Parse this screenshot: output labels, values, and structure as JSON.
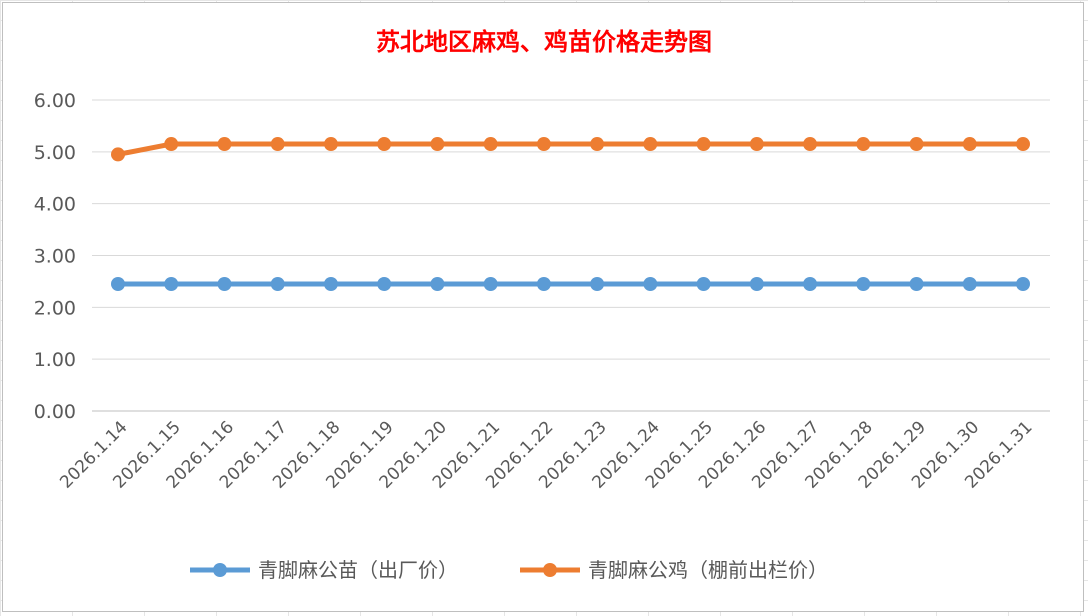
{
  "chart_data": {
    "type": "line",
    "title": "苏北地区麻鸡、鸡苗价格走势图",
    "categories": [
      "2026.1.14",
      "2026.1.15",
      "2026.1.16",
      "2026.1.17",
      "2026.1.18",
      "2026.1.19",
      "2026.1.20",
      "2026.1.21",
      "2026.1.22",
      "2026.1.23",
      "2026.1.24",
      "2026.1.25",
      "2026.1.26",
      "2026.1.27",
      "2026.1.28",
      "2026.1.29",
      "2026.1.30",
      "2026.1.31"
    ],
    "ylim": [
      0,
      6
    ],
    "yticks": [
      "0.00",
      "1.00",
      "2.00",
      "3.00",
      "4.00",
      "5.00",
      "6.00"
    ],
    "grid": true,
    "legend_position": "bottom",
    "series": [
      {
        "name": "青脚麻公苗（出厂价）",
        "color": "#5b9bd5",
        "values": [
          2.45,
          2.45,
          2.45,
          2.45,
          2.45,
          2.45,
          2.45,
          2.45,
          2.45,
          2.45,
          2.45,
          2.45,
          2.45,
          2.45,
          2.45,
          2.45,
          2.45,
          2.45
        ]
      },
      {
        "name": "青脚麻公鸡（棚前出栏价）",
        "color": "#ed7d31",
        "values": [
          4.95,
          5.15,
          5.15,
          5.15,
          5.15,
          5.15,
          5.15,
          5.15,
          5.15,
          5.15,
          5.15,
          5.15,
          5.15,
          5.15,
          5.15,
          5.15,
          5.15,
          5.15
        ]
      }
    ]
  }
}
